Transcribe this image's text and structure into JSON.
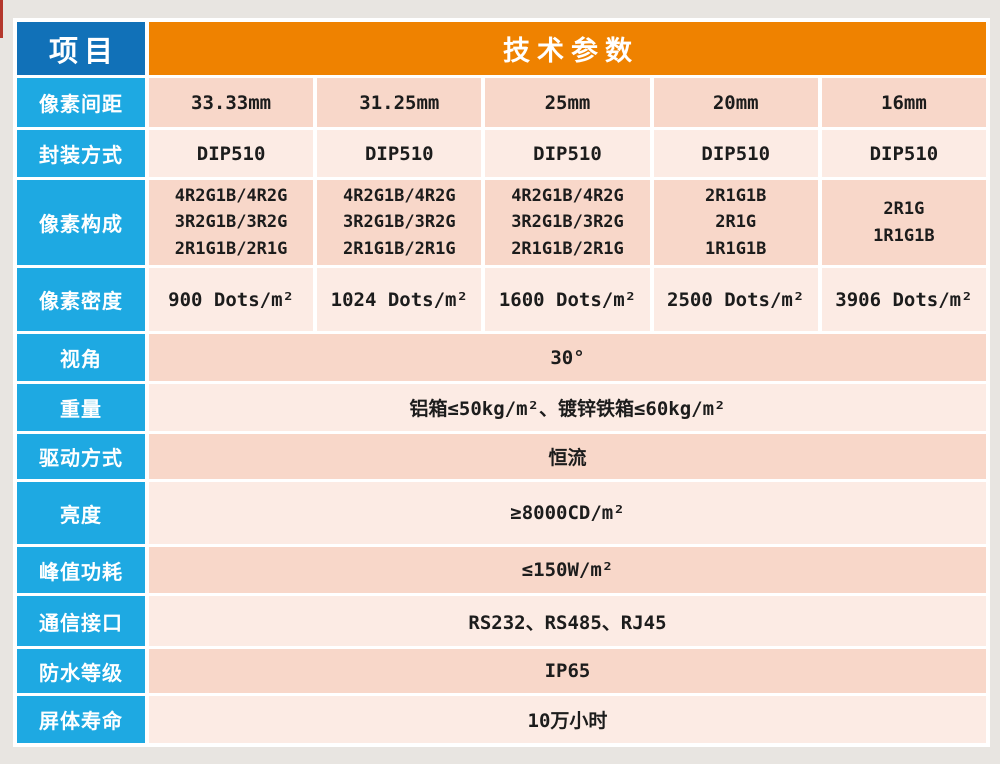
{
  "colors": {
    "page_background": "#e8e5e1",
    "corner_header_blue": "#1171b8",
    "title_orange": "#ef8200",
    "row_label_blue": "#1ea9e2",
    "cell_peach_dark": "#f8d7c9",
    "cell_peach_light": "#fcebe4",
    "grid_gap_white": "#ffffff",
    "value_text": "#1c1c1c"
  },
  "table": {
    "corner_label": "项目",
    "header_label": "技术参数",
    "rows": [
      {
        "label": "像素间距",
        "values": [
          "33.33mm",
          "31.25mm",
          "25mm",
          "20mm",
          "16mm"
        ]
      },
      {
        "label": "封装方式",
        "values": [
          "DIP510",
          "DIP510",
          "DIP510",
          "DIP510",
          "DIP510"
        ]
      },
      {
        "label": "像素构成",
        "values": [
          [
            "4R2G1B/4R2G",
            "3R2G1B/3R2G",
            "2R1G1B/2R1G"
          ],
          [
            "4R2G1B/4R2G",
            "3R2G1B/3R2G",
            "2R1G1B/2R1G"
          ],
          [
            "4R2G1B/4R2G",
            "3R2G1B/3R2G",
            "2R1G1B/2R1G"
          ],
          [
            "2R1G1B",
            "2R1G",
            "1R1G1B"
          ],
          [
            "2R1G",
            "1R1G1B"
          ]
        ]
      },
      {
        "label": "像素密度",
        "values": [
          "900 Dots/m²",
          "1024 Dots/m²",
          "1600 Dots/m²",
          "2500 Dots/m²",
          "3906 Dots/m²"
        ]
      },
      {
        "label": "视角",
        "merged": "30°"
      },
      {
        "label": "重量",
        "merged": "铝箱≤50kg/m²、镀锌铁箱≤60kg/m²"
      },
      {
        "label": "驱动方式",
        "merged": "恒流"
      },
      {
        "label": "亮度",
        "merged": "≥8000CD/m²"
      },
      {
        "label": "峰值功耗",
        "merged": "≤150W/m²"
      },
      {
        "label": "通信接口",
        "merged": "RS232、RS485、RJ45"
      },
      {
        "label": "防水等级",
        "merged": "IP65"
      },
      {
        "label": "屏体寿命",
        "merged": "10万小时"
      }
    ]
  }
}
